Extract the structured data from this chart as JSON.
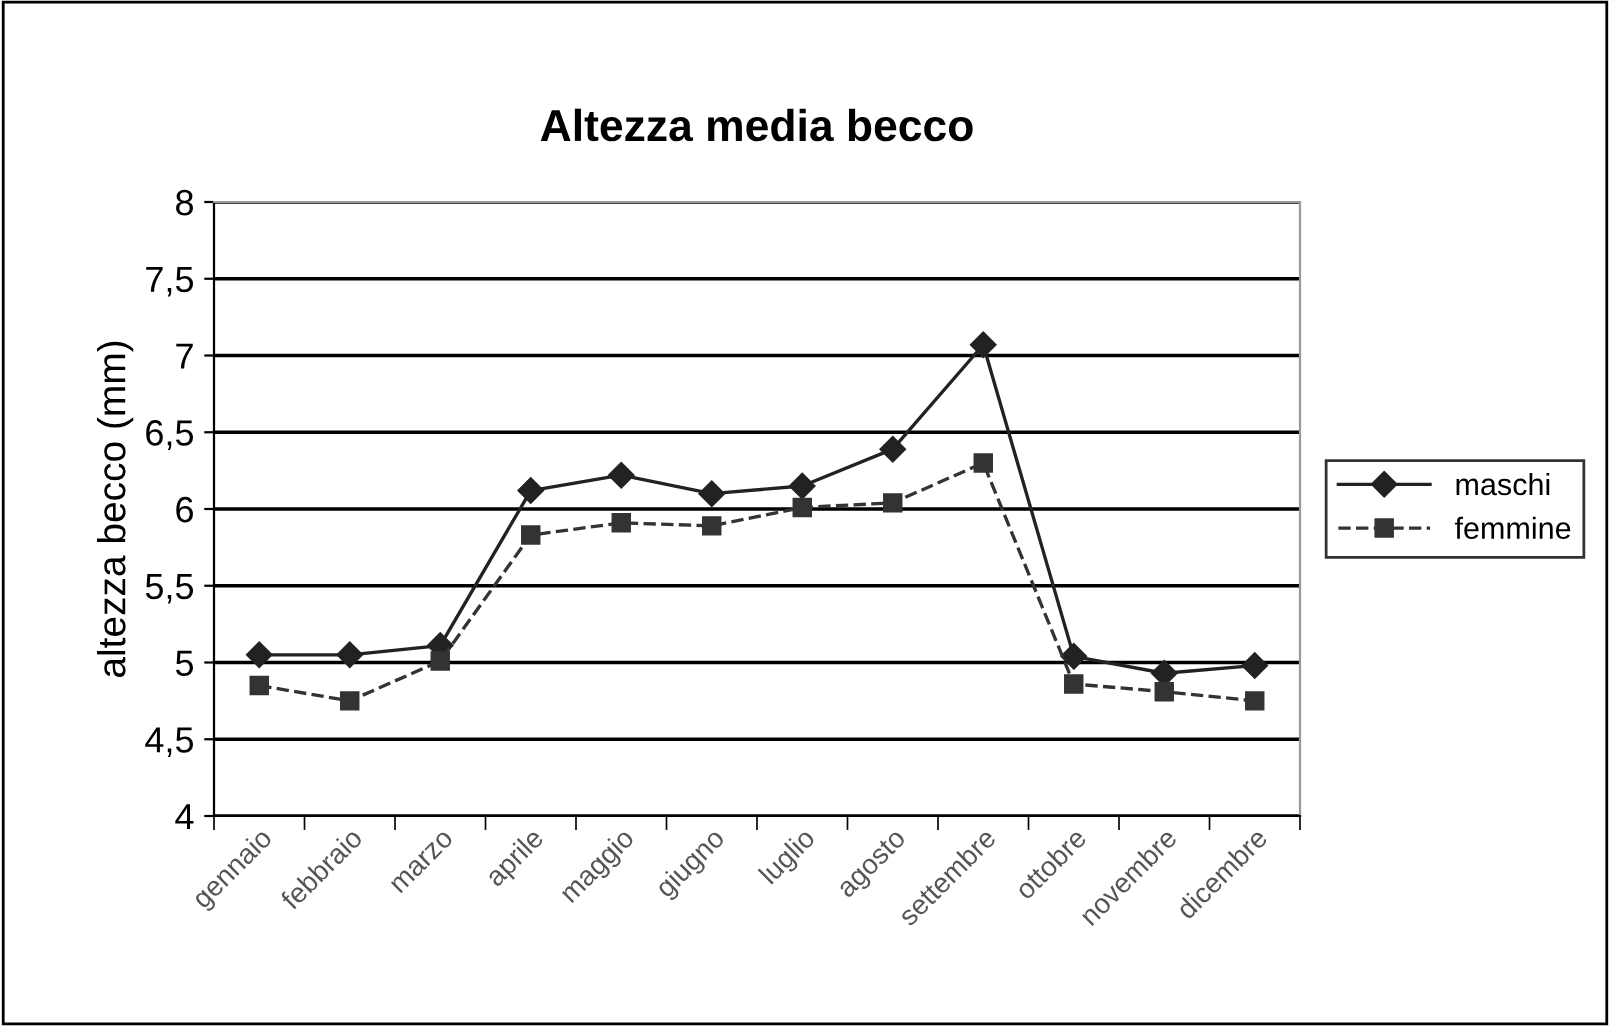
{
  "chart_data": {
    "type": "line",
    "title": "Altezza media becco",
    "ylabel": "altezza becco (mm)",
    "categories": [
      "gennaio",
      "febbraio",
      "marzo",
      "aprile",
      "maggio",
      "giugno",
      "luglio",
      "agosto",
      "settembre",
      "ottobre",
      "novembre",
      "dicembre"
    ],
    "series": [
      {
        "name": "maschi",
        "color": "#222222",
        "marker": "diamond",
        "line_style": "solid",
        "values": [
          5.05,
          5.05,
          5.11,
          6.12,
          6.22,
          6.1,
          6.15,
          6.39,
          7.07,
          5.04,
          4.93,
          4.98
        ]
      },
      {
        "name": "femmine",
        "color": "#333333",
        "marker": "square",
        "line_style": "dashed",
        "values": [
          4.85,
          4.75,
          5.01,
          5.83,
          5.91,
          5.89,
          6.01,
          6.04,
          6.3,
          4.86,
          4.81,
          4.75
        ]
      }
    ],
    "ylim": [
      4,
      8
    ],
    "yticks": [
      4,
      {
        "value": 4.5,
        "label": "4,5"
      },
      5,
      {
        "value": 5.5,
        "label": "5,5"
      },
      6,
      {
        "value": 6.5,
        "label": "6,5"
      },
      7,
      {
        "value": 7.5,
        "label": "7,5"
      },
      8
    ],
    "grid": "y",
    "legend": "right"
  }
}
